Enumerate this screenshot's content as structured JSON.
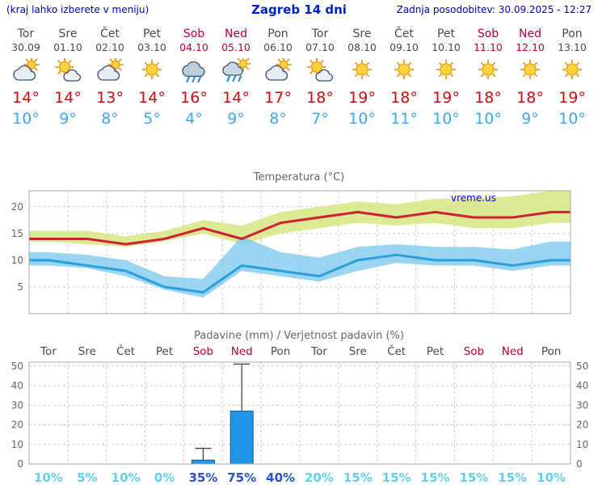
{
  "header": {
    "note": "(kraj lahko izberete v meniju)",
    "title": "Zagreb 14 dni",
    "updated": "Zadnja posodobitev: 30.09.2025 - 12:27"
  },
  "watermark": "vreme.us",
  "colors": {
    "link_blue": "#0000cd",
    "weekend_red": "#b4003c",
    "high_temp_red": "#cc0f0f",
    "low_temp_blue": "#41a8ea",
    "bar_blue": "#2395e6",
    "probability_light": "#5fd2f0",
    "probability_strong": "#2b50c8"
  },
  "days": [
    {
      "name": "Tor",
      "date": "30.09",
      "icon": "cloud-sun",
      "high": "14°",
      "low": "10°",
      "weekend": false
    },
    {
      "name": "Sre",
      "date": "01.10",
      "icon": "sun-cloud",
      "high": "14°",
      "low": "9°",
      "weekend": false
    },
    {
      "name": "Čet",
      "date": "02.10",
      "icon": "cloud-sun",
      "high": "13°",
      "low": "8°",
      "weekend": false
    },
    {
      "name": "Pet",
      "date": "03.10",
      "icon": "sun",
      "high": "14°",
      "low": "5°",
      "weekend": false
    },
    {
      "name": "Sob",
      "date": "04.10",
      "icon": "rain",
      "high": "16°",
      "low": "4°",
      "weekend": true
    },
    {
      "name": "Ned",
      "date": "05.10",
      "icon": "rain-sun",
      "high": "14°",
      "low": "9°",
      "weekend": true
    },
    {
      "name": "Pon",
      "date": "06.10",
      "icon": "cloud-sun",
      "high": "17°",
      "low": "8°",
      "weekend": false
    },
    {
      "name": "Tor",
      "date": "07.10",
      "icon": "sun-cloud",
      "high": "18°",
      "low": "7°",
      "weekend": false
    },
    {
      "name": "Sre",
      "date": "08.10",
      "icon": "sun",
      "high": "19°",
      "low": "10°",
      "weekend": false
    },
    {
      "name": "Čet",
      "date": "09.10",
      "icon": "sun",
      "high": "18°",
      "low": "11°",
      "weekend": false
    },
    {
      "name": "Pet",
      "date": "10.10",
      "icon": "sun",
      "high": "19°",
      "low": "10°",
      "weekend": false
    },
    {
      "name": "Sob",
      "date": "11.10",
      "icon": "sun",
      "high": "18°",
      "low": "10°",
      "weekend": true
    },
    {
      "name": "Ned",
      "date": "12.10",
      "icon": "sun",
      "high": "18°",
      "low": "9°",
      "weekend": true
    },
    {
      "name": "Pon",
      "date": "13.10",
      "icon": "sun",
      "high": "19°",
      "low": "10°",
      "weekend": false
    }
  ],
  "chart_data": [
    {
      "type": "line",
      "title": "Temperatura (°C)",
      "x_labels": [
        "Tor",
        "Sre",
        "Čet",
        "Pet",
        "Sob",
        "Ned",
        "Pon",
        "Tor",
        "Sre",
        "Čet",
        "Pet",
        "Sob",
        "Ned",
        "Pon"
      ],
      "ylim": [
        0,
        23
      ],
      "yticks": [
        5,
        10,
        15,
        20
      ],
      "grid": true,
      "series": [
        {
          "name": "max-temperature",
          "color": "#cc2233",
          "values": [
            14,
            14,
            13,
            14,
            16,
            14,
            17,
            18,
            19,
            18,
            19,
            18,
            18,
            19
          ]
        },
        {
          "name": "min-temperature",
          "color": "#2b9fd8",
          "values": [
            10,
            9,
            8,
            5,
            4,
            9,
            8,
            7,
            10,
            11,
            10,
            10,
            9,
            10
          ]
        }
      ],
      "bands": [
        {
          "name": "max-temp-range",
          "color": "rgba(214,228,120,0.8)",
          "upper": [
            15.5,
            15.5,
            14.5,
            15.5,
            17.5,
            16.5,
            19,
            20,
            21,
            20.5,
            21.5,
            21.5,
            22,
            23
          ],
          "lower": [
            13.5,
            13,
            12.5,
            13.5,
            15,
            13,
            15,
            16,
            17,
            16.5,
            17,
            16,
            16,
            17
          ]
        },
        {
          "name": "min-temp-range",
          "color": "rgba(120,200,238,0.75)",
          "upper": [
            11.5,
            11,
            10,
            7,
            6.5,
            14.5,
            11.5,
            10.5,
            12.5,
            13,
            12.5,
            12.5,
            12,
            13.5
          ],
          "lower": [
            9,
            8.5,
            7,
            4.5,
            3,
            8,
            7,
            6,
            8,
            9.5,
            9,
            9,
            8,
            9
          ]
        }
      ]
    },
    {
      "type": "bar",
      "title": "Padavine (mm) / Verjetnost padavin (%)",
      "categories": [
        "Tor",
        "Sre",
        "Čet",
        "Pet",
        "Sob",
        "Ned",
        "Pon",
        "Tor",
        "Sre",
        "Čet",
        "Pet",
        "Sob",
        "Ned",
        "Pon"
      ],
      "weekend": [
        false,
        false,
        false,
        false,
        true,
        true,
        false,
        false,
        false,
        false,
        false,
        true,
        true,
        false
      ],
      "precip_mm": [
        0,
        0,
        0,
        0,
        2,
        27,
        0,
        0,
        0,
        0,
        0,
        0,
        0,
        0
      ],
      "precip_max_mm": [
        0,
        0,
        0,
        0,
        8,
        51,
        0,
        0,
        0,
        0,
        0,
        0,
        0,
        0
      ],
      "probability": [
        "10%",
        "5%",
        "10%",
        "0%",
        "35%",
        "75%",
        "40%",
        "20%",
        "15%",
        "15%",
        "15%",
        "15%",
        "15%",
        "10%"
      ],
      "ylim": [
        0,
        52
      ],
      "yticks": [
        0,
        10,
        20,
        30,
        40,
        50
      ],
      "grid": true
    }
  ]
}
